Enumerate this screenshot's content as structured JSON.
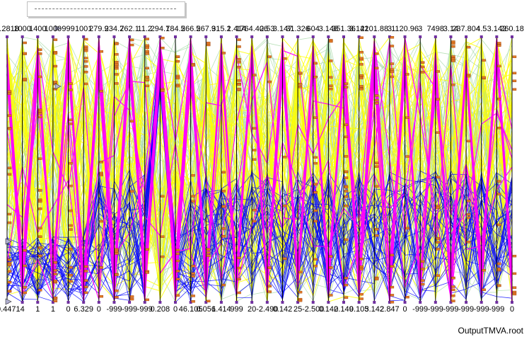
{
  "chart_data": {
    "type": "parallel-coordinates",
    "axes": [
      {
        "max": "0.2818",
        "min": "-0.4471"
      },
      {
        "max": "1000",
        "min": "4"
      },
      {
        "max": "1400",
        "min": "1"
      },
      {
        "max": "1000",
        "min": "1"
      },
      {
        "max": "999",
        "min": "0"
      },
      {
        "max": "1001",
        "min": "6.329"
      },
      {
        "max": "279.9",
        "min": "0"
      },
      {
        "max": "234.2",
        "min": "-999"
      },
      {
        "max": "762.1",
        "min": "-999"
      },
      {
        "max": "11.2",
        "min": "-999"
      },
      {
        "max": "294.1",
        "min": "0.208"
      },
      {
        "max": "784.5",
        "min": "0"
      },
      {
        "max": "266.5",
        "min": "46.105"
      },
      {
        "max": "267.9",
        "min": "0.056"
      },
      {
        "max": "315.2",
        "min": "1.414"
      },
      {
        "max": "1.414",
        "min": "999"
      },
      {
        "max": "1764.406",
        "min": "20"
      },
      {
        "max": "2.53",
        "min": "-2.490"
      },
      {
        "max": "3.147",
        "min": "0.142"
      },
      {
        "max": "31.326",
        "min": "25"
      },
      {
        "max": "604",
        "min": "-2.500"
      },
      {
        "max": "3.148",
        "min": "0.142"
      },
      {
        "max": "351.36",
        "min": "0.149"
      },
      {
        "max": "3.142",
        "min": "0.105"
      },
      {
        "max": "2101.88",
        "min": "3.142"
      },
      {
        "max": "3",
        "min": "2.847"
      },
      {
        "max": "1120.96",
        "min": "0"
      },
      {
        "max": "3",
        "min": "-999"
      },
      {
        "max": "7498",
        "min": "-999"
      },
      {
        "max": "3.14",
        "min": "-999"
      },
      {
        "max": "237.804",
        "min": "-999"
      },
      {
        "max": "4.5",
        "min": "-999"
      },
      {
        "max": "3.142",
        "min": "-999"
      },
      {
        "max": "260.18",
        "min": "0"
      }
    ],
    "series": [
      {
        "color": "#ffff00"
      },
      {
        "color": "#a6d9a6"
      },
      {
        "color": "#0000ff"
      },
      {
        "color": "#ff00ff"
      },
      {
        "color": "#e07a28"
      }
    ]
  },
  "footer": {
    "text": "OutputTMVA.root"
  }
}
